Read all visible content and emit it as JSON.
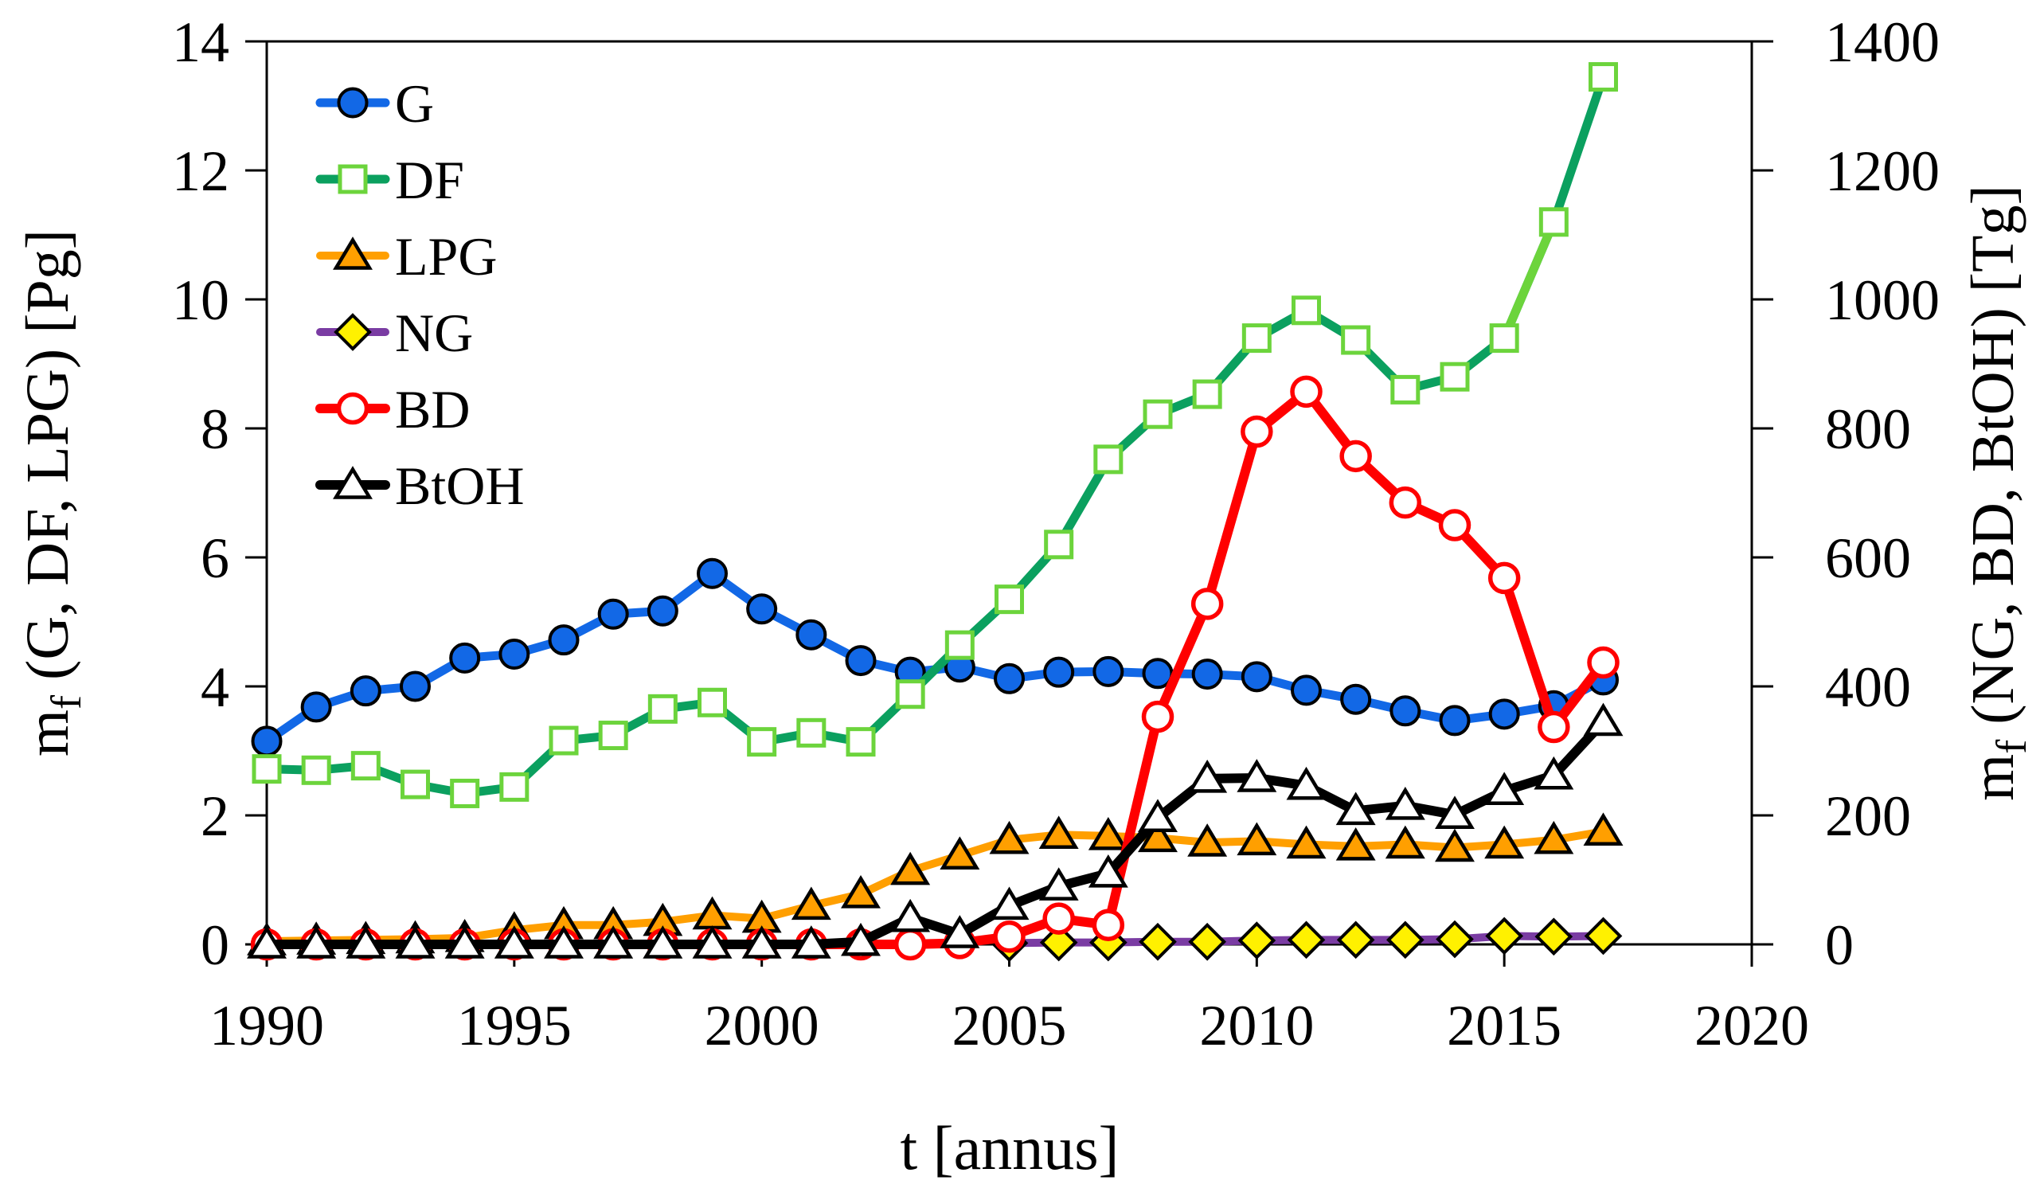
{
  "chart_data": {
    "type": "line",
    "title": "",
    "xlabel": "t [annus]",
    "x": [
      1990,
      1991,
      1992,
      1993,
      1994,
      1995,
      1996,
      1997,
      1998,
      1999,
      2000,
      2001,
      2002,
      2003,
      2004,
      2005,
      2006,
      2007,
      2008,
      2009,
      2010,
      2011,
      2012,
      2013,
      2014,
      2015,
      2016,
      2017
    ],
    "x_ticks": [
      1990,
      1995,
      2000,
      2005,
      2010,
      2015,
      2020
    ],
    "x_range": [
      1990,
      2020
    ],
    "grid": "off",
    "legend_position": "inside-top-left",
    "left_axis": {
      "title_main": "m",
      "title_sub": "f",
      "title_rest": " (G, DF, LPG) [Pg]",
      "range": [
        0,
        14
      ],
      "ticks": [
        0,
        2,
        4,
        6,
        8,
        10,
        12,
        14
      ]
    },
    "right_axis": {
      "title_main": "m",
      "title_sub": "f",
      "title_rest": " (NG, BD, BtOH) [Tg]",
      "range": [
        0,
        1400
      ],
      "ticks": [
        0,
        200,
        400,
        600,
        800,
        1000,
        1200,
        1400
      ]
    },
    "series": [
      {
        "name": "G",
        "axis": "left",
        "marker": "circle",
        "line_color": "#1268E6",
        "marker_fill": "#1268E6",
        "marker_stroke": "#000000",
        "line_width": 11,
        "values": [
          3.15,
          3.68,
          3.93,
          4.0,
          4.44,
          4.5,
          4.72,
          5.12,
          5.17,
          5.75,
          5.2,
          4.8,
          4.4,
          4.22,
          4.3,
          4.12,
          4.22,
          4.23,
          4.2,
          4.19,
          4.15,
          3.94,
          3.8,
          3.62,
          3.47,
          3.57,
          3.7,
          4.1
        ]
      },
      {
        "name": "DF",
        "axis": "left",
        "marker": "square",
        "line_color": "#0BA05F",
        "marker_fill": "#FFFFFF",
        "marker_stroke": "#6CD43C",
        "line_width": 11,
        "highlight_segment": {
          "from": 2015,
          "to": 2016,
          "color": "#6CD43C"
        },
        "values": [
          2.72,
          2.7,
          2.77,
          2.48,
          2.34,
          2.44,
          3.16,
          3.24,
          3.65,
          3.75,
          3.14,
          3.28,
          3.14,
          3.88,
          4.64,
          5.35,
          6.2,
          7.52,
          8.22,
          8.53,
          9.4,
          9.83,
          9.37,
          8.6,
          8.8,
          9.4,
          11.2,
          13.45
        ]
      },
      {
        "name": "LPG",
        "axis": "left",
        "marker": "triangle",
        "line_color": "#FF9F00",
        "marker_fill": "#FF9F00",
        "marker_stroke": "#000000",
        "line_width": 10,
        "values": [
          0.05,
          0.06,
          0.07,
          0.08,
          0.1,
          0.22,
          0.3,
          0.3,
          0.35,
          0.45,
          0.4,
          0.6,
          0.78,
          1.14,
          1.38,
          1.62,
          1.7,
          1.68,
          1.65,
          1.58,
          1.6,
          1.55,
          1.52,
          1.55,
          1.5,
          1.55,
          1.62,
          1.75
        ]
      },
      {
        "name": "NG",
        "axis": "right",
        "marker": "diamond",
        "line_color": "#7A3CA3",
        "marker_fill": "#FFF100",
        "marker_stroke": "#000000",
        "line_width": 10,
        "values": [
          null,
          null,
          null,
          null,
          null,
          null,
          null,
          null,
          null,
          null,
          null,
          null,
          null,
          null,
          null,
          2,
          3,
          3,
          4,
          4,
          6,
          7,
          7,
          7,
          8,
          13,
          12,
          13
        ]
      },
      {
        "name": "BD",
        "axis": "right",
        "marker": "open-circle",
        "line_color": "#FF0000",
        "marker_fill": "#FFFFFF",
        "marker_stroke": "#FF0000",
        "line_width": 12,
        "values": [
          0,
          0,
          0,
          0,
          0,
          0,
          0,
          0,
          0,
          0,
          0,
          0,
          0,
          0,
          2,
          12,
          40,
          30,
          353,
          528,
          795,
          857,
          757,
          685,
          650,
          568,
          337,
          437
        ]
      },
      {
        "name": "BtOH",
        "axis": "right",
        "marker": "open-triangle",
        "line_color": "#000000",
        "marker_fill": "#FFFFFF",
        "marker_stroke": "#000000",
        "line_width": 12,
        "values": [
          0,
          0,
          0,
          0,
          0,
          0,
          0,
          0,
          0,
          0,
          0,
          0,
          4,
          41,
          16,
          60,
          90,
          110,
          196,
          257,
          258,
          246,
          207,
          215,
          201,
          238,
          262,
          345
        ]
      }
    ],
    "legend": {
      "labels": [
        "G",
        "DF",
        "LPG",
        "NG",
        "BD",
        "BtOH"
      ]
    }
  }
}
